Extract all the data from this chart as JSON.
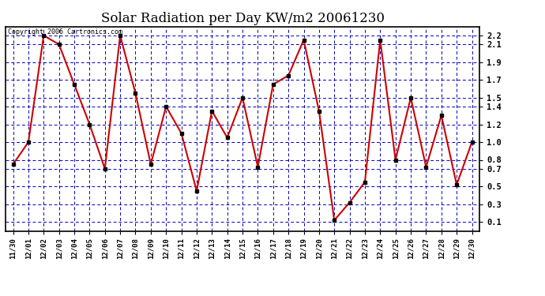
{
  "title": "Solar Radiation per Day KW/m2 20061230",
  "copyright": "Copyright 2006 Cartronics.com",
  "x_labels": [
    "11/30",
    "12/01",
    "12/02",
    "12/03",
    "12/04",
    "12/05",
    "12/06",
    "12/07",
    "12/08",
    "12/09",
    "12/10",
    "12/11",
    "12/12",
    "12/13",
    "12/14",
    "12/15",
    "12/16",
    "12/17",
    "12/18",
    "12/19",
    "12/20",
    "12/21",
    "12/22",
    "12/23",
    "12/24",
    "12/25",
    "12/26",
    "12/27",
    "12/28",
    "12/29",
    "12/30"
  ],
  "y_values": [
    0.75,
    1.0,
    2.2,
    2.1,
    1.65,
    1.2,
    0.7,
    2.2,
    1.55,
    0.75,
    1.4,
    1.1,
    0.45,
    1.35,
    1.05,
    1.5,
    0.72,
    1.65,
    1.75,
    2.15,
    1.35,
    0.12,
    0.32,
    0.55,
    2.15,
    0.8,
    1.5,
    0.72,
    1.3,
    0.52,
    1.0
  ],
  "line_color": "#cc0000",
  "marker_color": "#000000",
  "bg_color": "#ffffff",
  "grid_color": "#0000bb",
  "y_ticks": [
    0.1,
    0.3,
    0.5,
    0.7,
    0.8,
    1.0,
    1.2,
    1.4,
    1.5,
    1.7,
    1.9,
    2.1,
    2.2
  ],
  "ylim": [
    0.0,
    2.3
  ],
  "title_fontsize": 12,
  "copyright_fontsize": 6
}
